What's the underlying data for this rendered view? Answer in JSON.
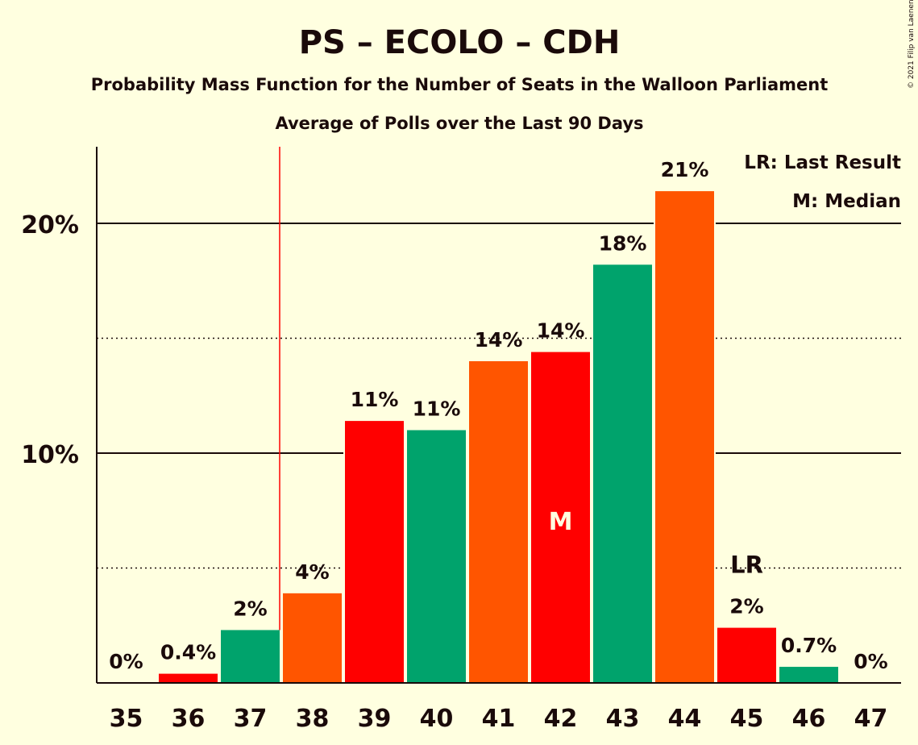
{
  "chart_data": {
    "type": "bar",
    "title": "PS – ECOLO – CDH",
    "subtitle": "Probability Mass Function for the Number of Seats in the Walloon Parliament",
    "subtitle2": "Average of Polls over the Last 90 Days",
    "copyright": "© 2021 Filip van Laenen",
    "categories": [
      "35",
      "36",
      "37",
      "38",
      "39",
      "40",
      "41",
      "42",
      "43",
      "44",
      "45",
      "46",
      "47"
    ],
    "values": [
      0,
      0.4,
      2.3,
      3.9,
      11.4,
      11.0,
      14.0,
      14.4,
      18.2,
      21.4,
      2.4,
      0.7,
      0
    ],
    "value_labels": [
      "0%",
      "0.4%",
      "2%",
      "4%",
      "11%",
      "11%",
      "14%",
      "14%",
      "18%",
      "21%",
      "2%",
      "0.7%",
      "0%"
    ],
    "bar_colors": [
      "#ff0000",
      "#ff0000",
      "#00a36c",
      "#ff5500",
      "#ff0000",
      "#00a36c",
      "#ff5500",
      "#ff0000",
      "#00a36c",
      "#ff5500",
      "#ff0000",
      "#00a36c",
      "#ff5500"
    ],
    "ylim": [
      0,
      23.5
    ],
    "y_ticks": [
      {
        "value": 10,
        "label": "10%"
      },
      {
        "value": 20,
        "label": "20%"
      }
    ],
    "dotted_gridlines": [
      5,
      15
    ],
    "majority_line_between": [
      "37",
      "38"
    ],
    "median_category": "42",
    "median_marker": "M",
    "last_result_category": "45",
    "last_result_marker": "LR",
    "legend": {
      "position": "top-right",
      "items": [
        "LR: Last Result",
        "M: Median"
      ]
    },
    "colors": {
      "background": "#ffffe0",
      "text": "#1a0a0a",
      "majority_line": "#ff0000"
    }
  }
}
